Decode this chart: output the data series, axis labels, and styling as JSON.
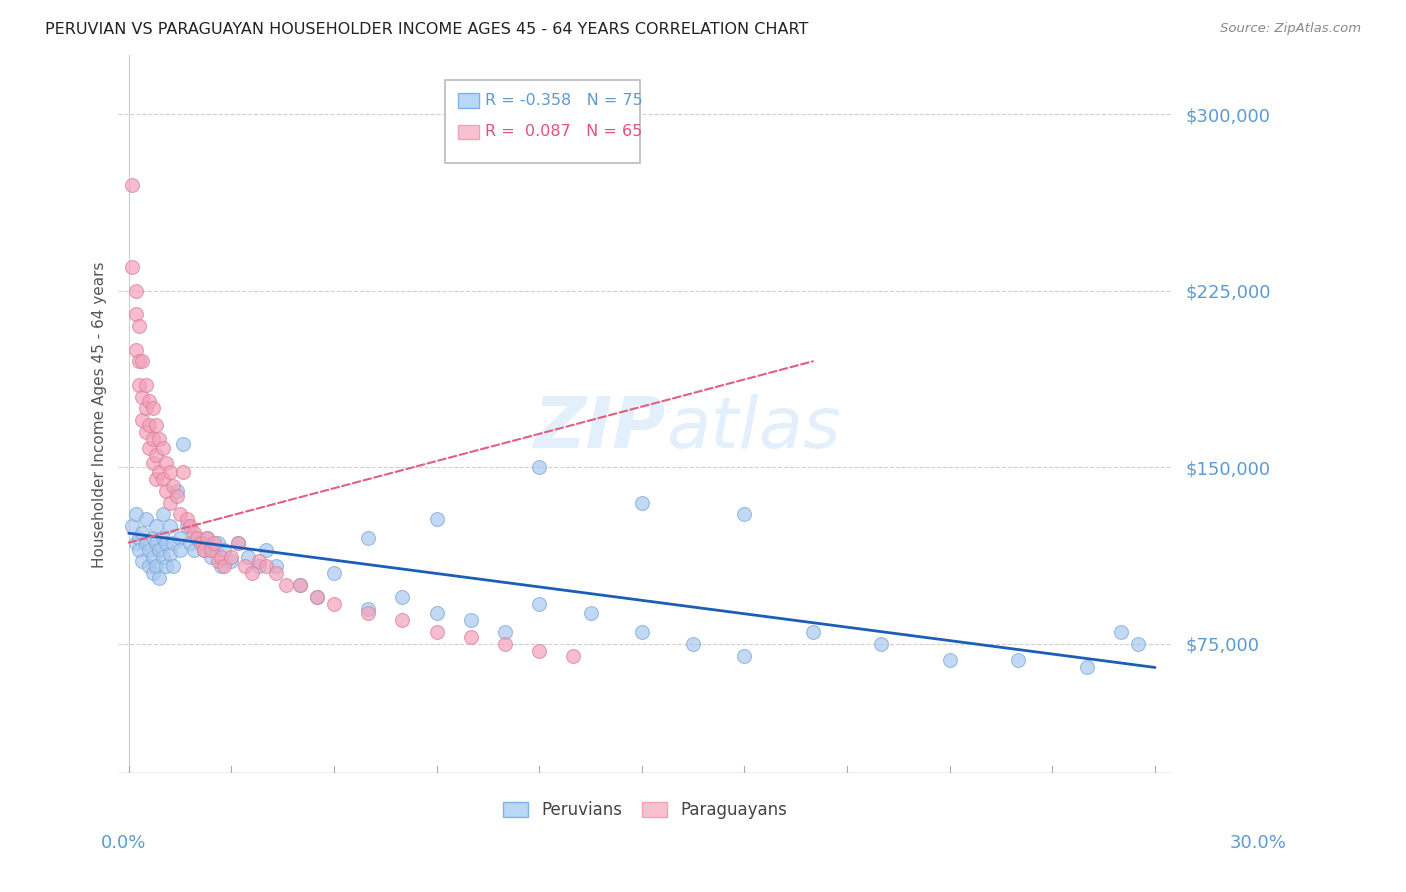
{
  "title": "PERUVIAN VS PARAGUAYAN HOUSEHOLDER INCOME AGES 45 - 64 YEARS CORRELATION CHART",
  "source": "Source: ZipAtlas.com",
  "ylabel": "Householder Income Ages 45 - 64 years",
  "y_ticks": [
    75000,
    150000,
    225000,
    300000
  ],
  "y_tick_labels": [
    "$75,000",
    "$150,000",
    "$225,000",
    "$300,000"
  ],
  "ylim": [
    20000,
    325000
  ],
  "xlim": [
    -0.003,
    0.305
  ],
  "peruvian_color": "#a8c8f0",
  "paraguayan_color": "#f4a0b8",
  "peruvian_line_color": "#1a5eb8",
  "paraguayan_line_color": "#e06080",
  "watermark": "ZIPatlas",
  "peruvian_x": [
    0.001,
    0.002,
    0.002,
    0.003,
    0.003,
    0.004,
    0.004,
    0.005,
    0.005,
    0.006,
    0.006,
    0.007,
    0.007,
    0.007,
    0.008,
    0.008,
    0.008,
    0.009,
    0.009,
    0.01,
    0.01,
    0.01,
    0.011,
    0.011,
    0.012,
    0.012,
    0.013,
    0.013,
    0.014,
    0.015,
    0.015,
    0.016,
    0.017,
    0.018,
    0.019,
    0.02,
    0.021,
    0.022,
    0.023,
    0.024,
    0.025,
    0.026,
    0.027,
    0.028,
    0.03,
    0.032,
    0.035,
    0.038,
    0.04,
    0.043,
    0.05,
    0.055,
    0.06,
    0.07,
    0.08,
    0.09,
    0.1,
    0.11,
    0.12,
    0.135,
    0.15,
    0.165,
    0.18,
    0.2,
    0.22,
    0.24,
    0.26,
    0.28,
    0.29,
    0.295,
    0.18,
    0.15,
    0.12,
    0.09,
    0.07
  ],
  "peruvian_y": [
    125000,
    118000,
    130000,
    120000,
    115000,
    122000,
    110000,
    118000,
    128000,
    115000,
    108000,
    120000,
    112000,
    105000,
    118000,
    108000,
    125000,
    115000,
    103000,
    120000,
    112000,
    130000,
    108000,
    118000,
    125000,
    113000,
    118000,
    108000,
    140000,
    120000,
    115000,
    160000,
    125000,
    118000,
    115000,
    120000,
    118000,
    115000,
    120000,
    112000,
    115000,
    118000,
    108000,
    115000,
    110000,
    118000,
    112000,
    108000,
    115000,
    108000,
    100000,
    95000,
    105000,
    90000,
    95000,
    88000,
    85000,
    80000,
    92000,
    88000,
    80000,
    75000,
    70000,
    80000,
    75000,
    68000,
    68000,
    65000,
    80000,
    75000,
    130000,
    135000,
    150000,
    128000,
    120000
  ],
  "paraguayan_x": [
    0.001,
    0.001,
    0.002,
    0.002,
    0.002,
    0.003,
    0.003,
    0.003,
    0.004,
    0.004,
    0.004,
    0.005,
    0.005,
    0.005,
    0.006,
    0.006,
    0.006,
    0.007,
    0.007,
    0.007,
    0.008,
    0.008,
    0.008,
    0.009,
    0.009,
    0.01,
    0.01,
    0.011,
    0.011,
    0.012,
    0.012,
    0.013,
    0.014,
    0.015,
    0.016,
    0.017,
    0.018,
    0.019,
    0.02,
    0.021,
    0.022,
    0.023,
    0.024,
    0.025,
    0.026,
    0.027,
    0.028,
    0.03,
    0.032,
    0.034,
    0.036,
    0.038,
    0.04,
    0.043,
    0.046,
    0.05,
    0.055,
    0.06,
    0.07,
    0.08,
    0.09,
    0.1,
    0.11,
    0.12,
    0.13
  ],
  "paraguayan_y": [
    270000,
    235000,
    225000,
    215000,
    200000,
    210000,
    195000,
    185000,
    195000,
    180000,
    170000,
    185000,
    175000,
    165000,
    178000,
    168000,
    158000,
    175000,
    162000,
    152000,
    168000,
    155000,
    145000,
    162000,
    148000,
    158000,
    145000,
    152000,
    140000,
    148000,
    135000,
    142000,
    138000,
    130000,
    148000,
    128000,
    125000,
    122000,
    120000,
    118000,
    115000,
    120000,
    115000,
    118000,
    110000,
    112000,
    108000,
    112000,
    118000,
    108000,
    105000,
    110000,
    108000,
    105000,
    100000,
    100000,
    95000,
    92000,
    88000,
    85000,
    80000,
    78000,
    75000,
    72000,
    70000
  ]
}
